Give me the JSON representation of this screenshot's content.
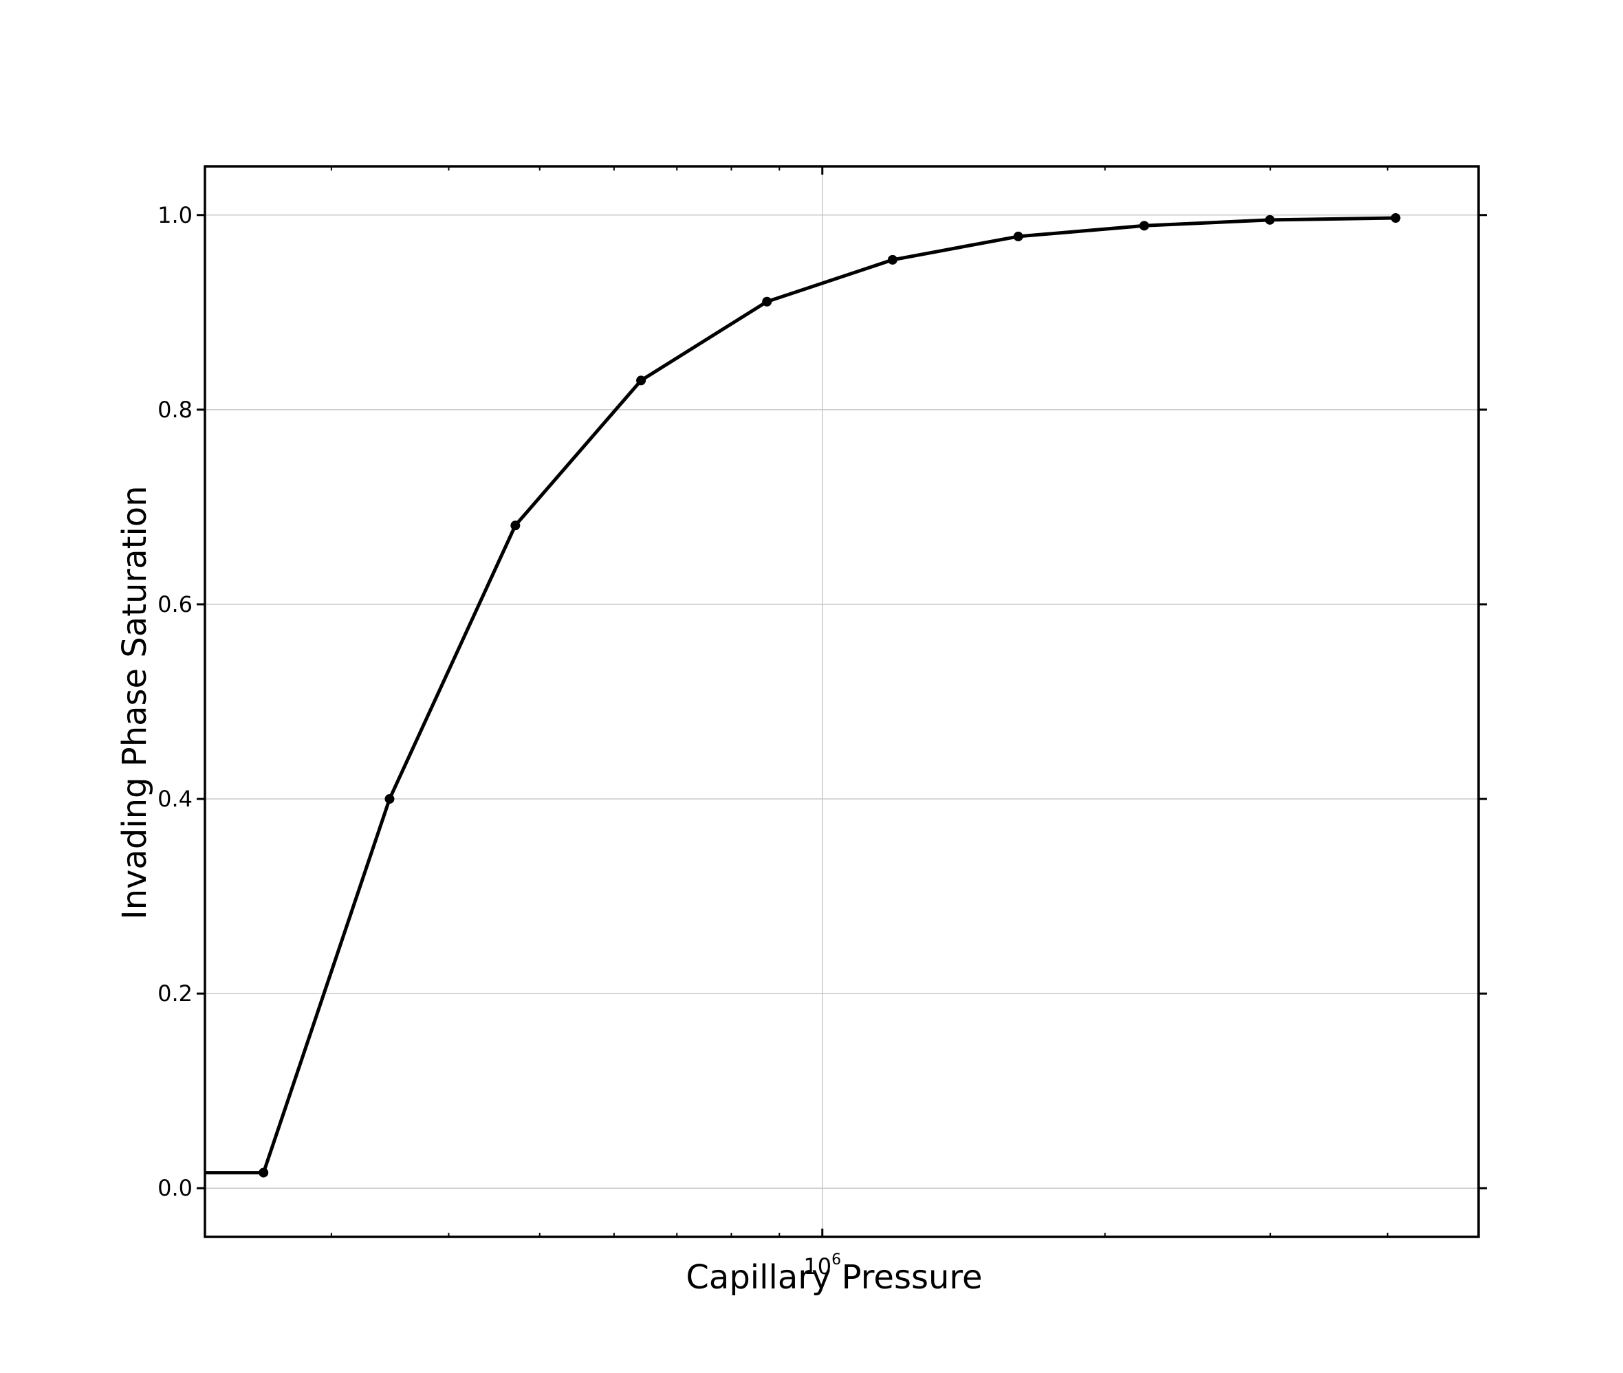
{
  "chart_data": {
    "type": "line",
    "title": "",
    "xlabel": "Capillary Pressure",
    "ylabel": "Invading Phase Saturation",
    "xscale": "log",
    "xlim": [
      220000,
      5000000
    ],
    "ylim": [
      -0.05,
      1.05
    ],
    "grid": true,
    "legend": "none",
    "x_ticks": [
      {
        "value": 1000000,
        "base": "10",
        "exp": "6"
      }
    ],
    "y_ticks": [
      {
        "value": 0.0,
        "label": "0.0"
      },
      {
        "value": 0.2,
        "label": "0.2"
      },
      {
        "value": 0.4,
        "label": "0.4"
      },
      {
        "value": 0.6,
        "label": "0.6"
      },
      {
        "value": 0.8,
        "label": "0.8"
      },
      {
        "value": 1.0,
        "label": "1.0"
      }
    ],
    "x_minor_ticks": [
      300000,
      400000,
      500000,
      600000,
      700000,
      800000,
      900000,
      2000000,
      3000000,
      4000000
    ],
    "series": [
      {
        "color": "#000000",
        "x": [
          220000,
          254000,
          346000,
          471000,
          641000,
          873000,
          1188000,
          1617000,
          2202000,
          2997000,
          4080000
        ],
        "y": [
          0.016,
          0.016,
          0.4,
          0.681,
          0.83,
          0.911,
          0.954,
          0.978,
          0.989,
          0.995,
          0.997
        ]
      }
    ]
  }
}
